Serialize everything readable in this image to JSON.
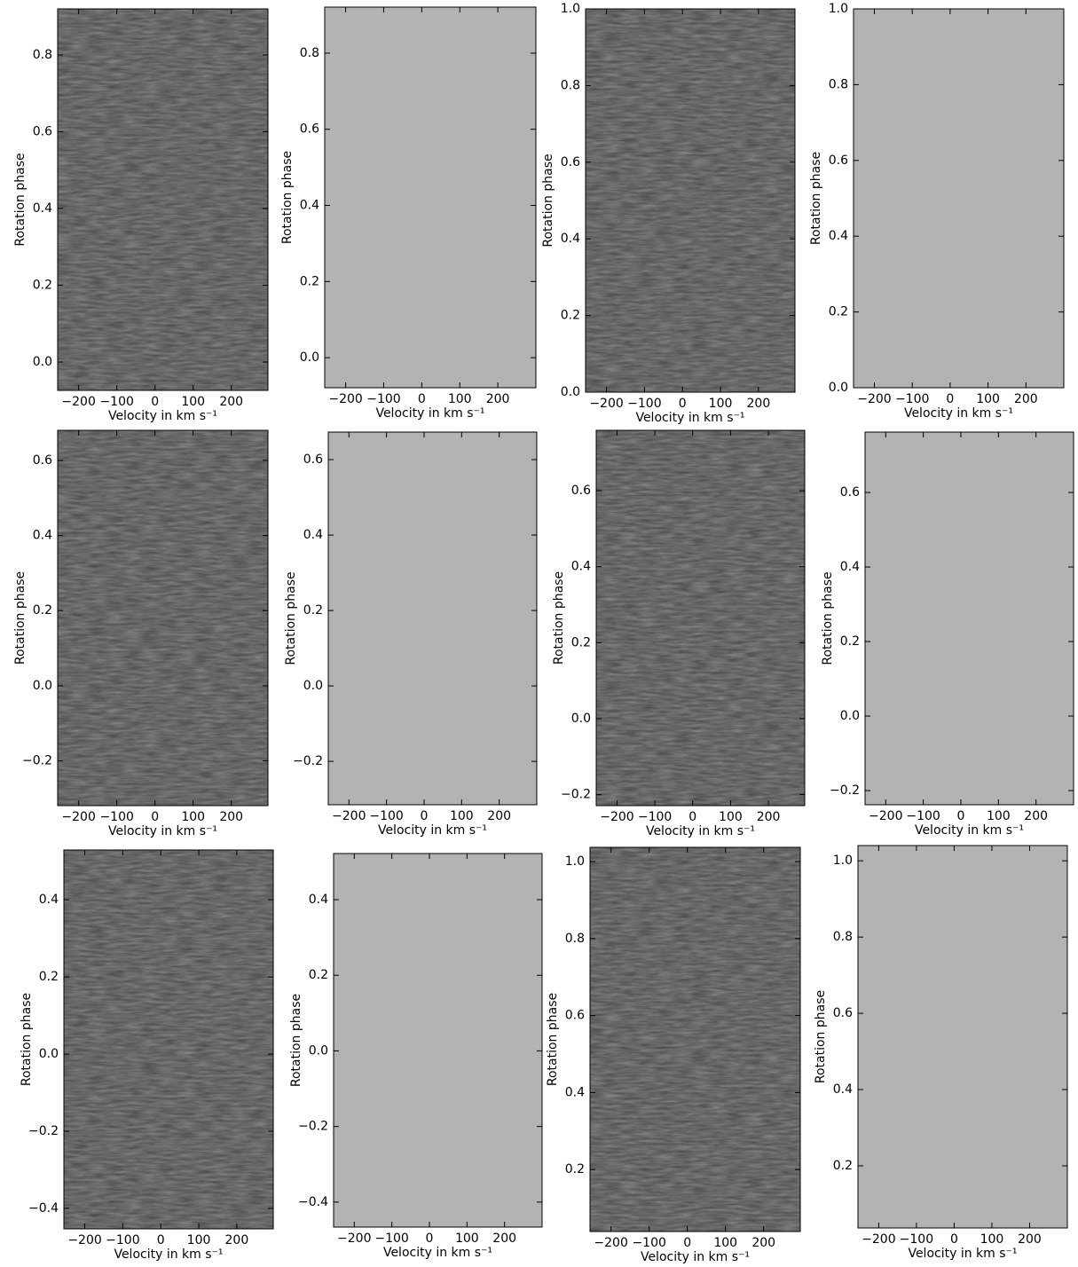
{
  "chart_data": [
    {
      "type": "trailed-spectrum",
      "xlabel": "Velocity in km s⁻¹",
      "ylabel": "Rotation phase",
      "xlim": [
        -255,
        296
      ],
      "ylim": [
        -0.074,
        0.92
      ],
      "xticks": [
        {
          "value": -200,
          "label": "−200"
        },
        {
          "value": -100,
          "label": "−100"
        },
        0,
        100,
        200
      ],
      "yticks": [
        {
          "value": 0,
          "label": "0.0"
        },
        0.2,
        0.4,
        0.6,
        0.8
      ]
    },
    {
      "type": "model-spectrum",
      "xlabel": "Velocity in km s⁻¹",
      "ylabel": "Rotation phase",
      "xlim": [
        -255,
        300
      ],
      "ylim": [
        -0.079,
        0.921
      ],
      "xticks": [
        {
          "value": -200,
          "label": "−200"
        },
        {
          "value": -100,
          "label": "−100"
        },
        0,
        100,
        200
      ],
      "yticks": [
        {
          "value": 0,
          "label": "0.0"
        },
        0.2,
        0.4,
        0.6,
        0.8
      ]
    },
    {
      "type": "trailed-spectrum",
      "xlabel": "Velocity in km s⁻¹",
      "ylabel": "Rotation phase",
      "xlim": [
        -255,
        296
      ],
      "ylim": [
        0,
        1
      ],
      "xticks": [
        {
          "value": -200,
          "label": "−200"
        },
        {
          "value": -100,
          "label": "−100"
        },
        0,
        100,
        200
      ],
      "yticks": [
        {
          "value": 0,
          "label": "0.0"
        },
        0.2,
        0.4,
        0.6,
        0.8,
        {
          "value": 1,
          "label": "1.0"
        }
      ]
    },
    {
      "type": "model-spectrum",
      "xlabel": "Velocity in km s⁻¹",
      "ylabel": "Rotation phase",
      "xlim": [
        -255,
        300
      ],
      "ylim": [
        0,
        1
      ],
      "xticks": [
        {
          "value": -200,
          "label": "−200"
        },
        {
          "value": -100,
          "label": "−100"
        },
        0,
        100,
        200
      ],
      "yticks": [
        {
          "value": 0,
          "label": "0.0"
        },
        0.2,
        0.4,
        0.6,
        0.8,
        {
          "value": 1,
          "label": "1.0"
        }
      ]
    },
    {
      "type": "trailed-spectrum",
      "xlabel": "Velocity in km s⁻¹",
      "ylabel": "Rotation phase",
      "xlim": [
        -255,
        296
      ],
      "ylim": [
        -0.319,
        0.68
      ],
      "xticks": [
        {
          "value": -200,
          "label": "−200"
        },
        {
          "value": -100,
          "label": "−100"
        },
        0,
        100,
        200
      ],
      "yticks": [
        {
          "value": -0.2,
          "label": "−0.2"
        },
        {
          "value": 0,
          "label": "0.0"
        },
        0.2,
        0.4,
        0.6
      ]
    },
    {
      "type": "model-spectrum",
      "xlabel": "Velocity in km s⁻¹",
      "ylabel": "Rotation phase",
      "xlim": [
        -255,
        300
      ],
      "ylim": [
        -0.315,
        0.673
      ],
      "xticks": [
        {
          "value": -200,
          "label": "−200"
        },
        {
          "value": -100,
          "label": "−100"
        },
        0,
        100,
        200
      ],
      "yticks": [
        {
          "value": -0.2,
          "label": "−0.2"
        },
        {
          "value": 0,
          "label": "0.0"
        },
        0.2,
        0.4,
        0.6
      ]
    },
    {
      "type": "trailed-spectrum",
      "xlabel": "Velocity in km s⁻¹",
      "ylabel": "Rotation phase",
      "xlim": [
        -255,
        296
      ],
      "ylim": [
        -0.229,
        0.759
      ],
      "xticks": [
        {
          "value": -200,
          "label": "−200"
        },
        {
          "value": -100,
          "label": "−100"
        },
        0,
        100,
        200
      ],
      "yticks": [
        {
          "value": -0.2,
          "label": "−0.2"
        },
        {
          "value": 0,
          "label": "0.0"
        },
        0.2,
        0.4,
        0.6
      ]
    },
    {
      "type": "model-spectrum",
      "xlabel": "Velocity in km s⁻¹",
      "ylabel": "Rotation phase",
      "xlim": [
        -255,
        300
      ],
      "ylim": [
        -0.238,
        0.762
      ],
      "xticks": [
        {
          "value": -200,
          "label": "−200"
        },
        {
          "value": -100,
          "label": "−100"
        },
        0,
        100,
        200
      ],
      "yticks": [
        {
          "value": -0.2,
          "label": "−0.2"
        },
        {
          "value": 0,
          "label": "0.0"
        },
        0.2,
        0.4,
        0.6
      ]
    },
    {
      "type": "trailed-spectrum",
      "xlabel": "Velocity in km s⁻¹",
      "ylabel": "Rotation phase",
      "xlim": [
        -255,
        296
      ],
      "ylim": [
        -0.453,
        0.529
      ],
      "xticks": [
        {
          "value": -200,
          "label": "−200"
        },
        {
          "value": -100,
          "label": "−100"
        },
        0,
        100,
        200
      ],
      "yticks": [
        {
          "value": -0.4,
          "label": "−0.4"
        },
        {
          "value": -0.2,
          "label": "−0.2"
        },
        {
          "value": 0,
          "label": "0.0"
        },
        0.2,
        0.4
      ]
    },
    {
      "type": "model-spectrum",
      "xlabel": "Velocity in km s⁻¹",
      "ylabel": "Rotation phase",
      "xlim": [
        -255,
        300
      ],
      "ylim": [
        -0.466,
        0.522
      ],
      "xticks": [
        {
          "value": -200,
          "label": "−200"
        },
        {
          "value": -100,
          "label": "−100"
        },
        0,
        100,
        200
      ],
      "yticks": [
        {
          "value": -0.4,
          "label": "−0.4"
        },
        {
          "value": -0.2,
          "label": "−0.2"
        },
        {
          "value": 0,
          "label": "0.0"
        },
        0.2,
        0.4
      ]
    },
    {
      "type": "trailed-spectrum",
      "xlabel": "Velocity in km s⁻¹",
      "ylabel": "Rotation phase",
      "xlim": [
        -255,
        296
      ],
      "ylim": [
        0.039,
        1.037
      ],
      "xticks": [
        {
          "value": -200,
          "label": "−200"
        },
        {
          "value": -100,
          "label": "−100"
        },
        0,
        100,
        200
      ],
      "yticks": [
        0.2,
        0.4,
        0.6,
        0.8,
        {
          "value": 1,
          "label": "1.0"
        }
      ]
    },
    {
      "type": "model-spectrum",
      "xlabel": "Velocity in km s⁻¹",
      "ylabel": "Rotation phase",
      "xlim": [
        -255,
        300
      ],
      "ylim": [
        0.037,
        1.04
      ],
      "xticks": [
        {
          "value": -200,
          "label": "−200"
        },
        {
          "value": -100,
          "label": "−100"
        },
        0,
        100,
        200
      ],
      "yticks": [
        0.2,
        0.4,
        0.6,
        0.8,
        {
          "value": 1,
          "label": "1.0"
        }
      ]
    }
  ]
}
